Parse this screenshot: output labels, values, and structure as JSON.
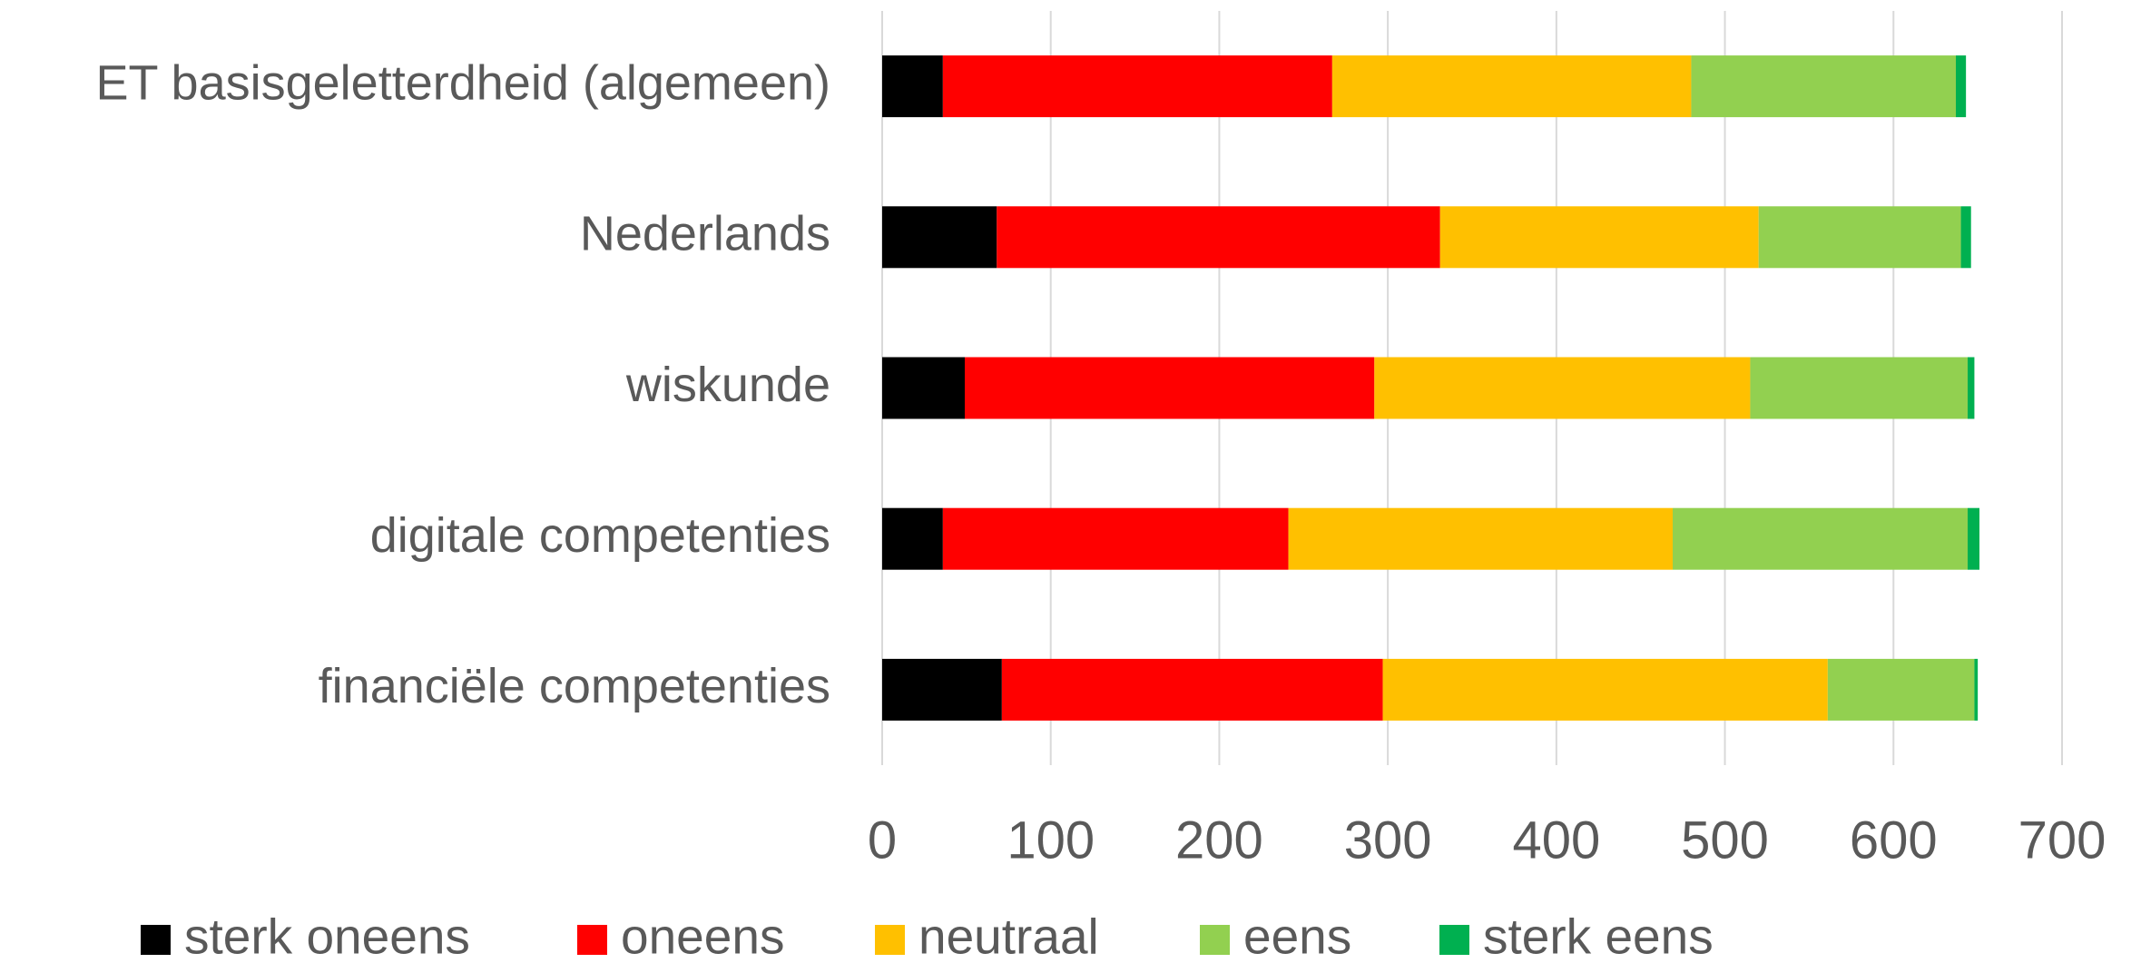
{
  "chart_data": {
    "type": "stacked_barh",
    "categories": [
      "ET basisgeletterdheid (algemeen)",
      "Nederlands",
      "wiskunde",
      "digitale competenties",
      "financiële competenties"
    ],
    "series": [
      {
        "name": "sterk oneens",
        "color": "#000000",
        "values": [
          36,
          68,
          49,
          36,
          71
        ]
      },
      {
        "name": "oneens",
        "color": "#ff0000",
        "values": [
          231,
          263,
          243,
          205,
          226
        ]
      },
      {
        "name": "neutraal",
        "color": "#ffc000",
        "values": [
          213,
          189,
          223,
          228,
          264
        ]
      },
      {
        "name": "eens",
        "color": "#92d050",
        "values": [
          157,
          120,
          129,
          175,
          87
        ]
      },
      {
        "name": "sterk eens",
        "color": "#00b050",
        "values": [
          6,
          6,
          4,
          7,
          2
        ]
      }
    ],
    "xlim": [
      0,
      700
    ],
    "xticks": [
      0,
      100,
      200,
      300,
      400,
      500,
      600,
      700
    ],
    "grid": true,
    "legend": "bottom"
  }
}
